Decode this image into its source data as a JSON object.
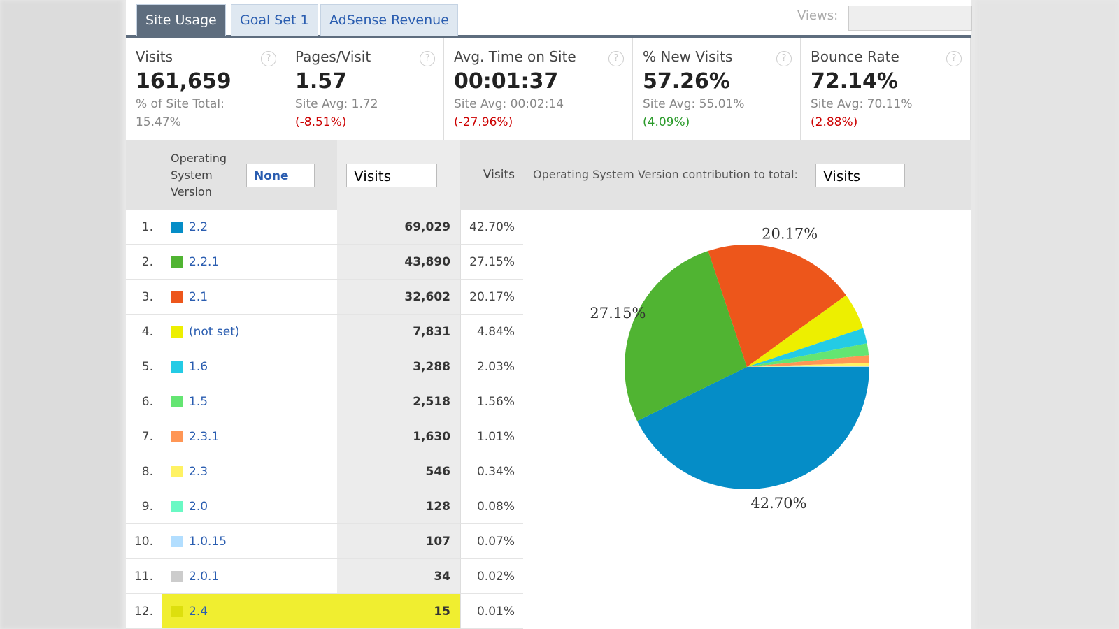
{
  "tabs": [
    "Site Usage",
    "Goal Set 1",
    "AdSense Revenue"
  ],
  "views_label": "Views:",
  "metrics": [
    {
      "label": "Visits",
      "value": "161,659",
      "sub": "% of Site Total:",
      "change": "15.47%"
    },
    {
      "label": "Pages/Visit",
      "value": "1.57",
      "sub": "Site Avg: 1.72",
      "change": "(-8.51%)"
    },
    {
      "label": "Avg. Time on Site",
      "value": "00:01:37",
      "sub": "Site Avg: 00:02:14",
      "change": "(-27.96%)"
    },
    {
      "label": "% New Visits",
      "value": "57.26%",
      "sub": "Site Avg: 55.01%",
      "change": "(4.09%)"
    },
    {
      "label": "Bounce Rate",
      "value": "72.14%",
      "sub": "Site Avg: 70.11%",
      "change": "(2.88%)"
    }
  ],
  "table": {
    "header": {
      "dimension": "Operating System Version",
      "segment": "None",
      "sort": "Visits",
      "visits": "Visits",
      "contribution": "Operating System Version contribution to total:",
      "contribution_select": "Visits"
    },
    "rows": [
      {
        "rank": "1.",
        "name": "2.2",
        "visits": "69,029",
        "percent": "42.70%"
      },
      {
        "rank": "2.",
        "name": "2.2.1",
        "visits": "43,890",
        "percent": "27.15%"
      },
      {
        "rank": "3.",
        "name": "2.1",
        "visits": "32,602",
        "percent": "20.17%"
      },
      {
        "rank": "4.",
        "name": "(not set)",
        "visits": "7,831",
        "percent": "4.84%"
      },
      {
        "rank": "5.",
        "name": "1.6",
        "visits": "3,288",
        "percent": "2.03%"
      },
      {
        "rank": "6.",
        "name": "1.5",
        "visits": "2,518",
        "percent": "1.56%"
      },
      {
        "rank": "7.",
        "name": "2.3.1",
        "visits": "1,630",
        "percent": "1.01%"
      },
      {
        "rank": "8.",
        "name": "2.3",
        "visits": "546",
        "percent": "0.34%"
      },
      {
        "rank": "9.",
        "name": "2.0",
        "visits": "128",
        "percent": "0.08%"
      },
      {
        "rank": "10.",
        "name": "1.0.15",
        "visits": "107",
        "percent": "0.07%"
      },
      {
        "rank": "11.",
        "name": "2.0.1",
        "visits": "34",
        "percent": "0.02%"
      },
      {
        "rank": "12.",
        "name": "2.4",
        "visits": "15",
        "percent": "0.01%"
      }
    ]
  },
  "chart_data": {
    "type": "pie",
    "values": [
      42.7,
      27.15,
      20.17,
      4.84,
      2.03,
      1.56,
      1.01,
      0.34,
      0.08,
      0.07,
      0.02,
      0.01
    ],
    "value_labels": [
      "42.70%",
      "27.15%",
      "20.17%",
      null,
      null,
      null,
      null,
      null,
      null,
      null,
      null,
      null
    ],
    "colors": [
      "#058dc7",
      "#50b432",
      "#ed561b",
      "#edef00",
      "#24cbe5",
      "#64e572",
      "#ff9655",
      "#fff263",
      "#6af9c4",
      "#b2deff",
      "#cccccc",
      "#dddf0d"
    ]
  }
}
